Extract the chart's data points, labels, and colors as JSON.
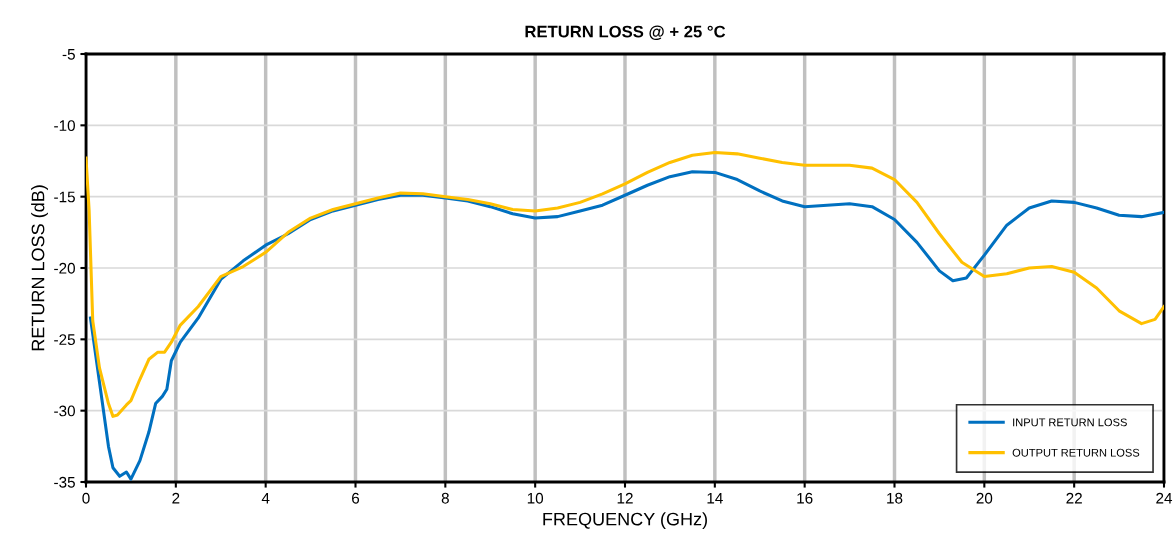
{
  "chart_data": {
    "type": "line",
    "title": "RETURN LOSS @ + 25 °C",
    "xlabel": "FREQUENCY (GHz)",
    "ylabel": "RETURN LOSS (dB)",
    "xlim": [
      0,
      24
    ],
    "xticks": [
      0,
      2,
      4,
      6,
      8,
      10,
      12,
      14,
      16,
      18,
      20,
      22,
      24
    ],
    "ylim": [
      -35,
      -5
    ],
    "yticks": [
      -35,
      -30,
      -25,
      -20,
      -15,
      -10,
      -5
    ],
    "grid": true,
    "legend": "bottom right",
    "marker": "none",
    "line_style": "solid",
    "series": [
      {
        "name": "INPUT RETURN LOSS",
        "color": "#0070c0",
        "x": [
          0.1,
          0.3,
          0.5,
          0.6,
          0.75,
          0.9,
          1.0,
          1.2,
          1.4,
          1.55,
          1.7,
          1.8,
          1.9,
          2.1,
          2.5,
          3.0,
          3.5,
          4.0,
          4.5,
          5.0,
          5.5,
          6.0,
          6.5,
          7,
          7.5,
          8,
          8.5,
          9,
          9.5,
          10,
          10.5,
          11,
          11.5,
          12,
          12.5,
          13,
          13.5,
          14,
          14.5,
          15,
          15.5,
          16,
          16.5,
          17,
          17.5,
          18,
          18.5,
          19,
          19.3,
          19.6,
          20,
          20.5,
          21,
          21.5,
          22,
          22.5,
          23,
          23.5,
          24
        ],
        "values": [
          -23.5,
          -28,
          -32.5,
          -34,
          -34.6,
          -34.3,
          -34.8,
          -33.5,
          -31.5,
          -29.5,
          -29,
          -28.5,
          -26.5,
          -25.2,
          -23.5,
          -20.8,
          -19.5,
          -18.4,
          -17.6,
          -16.6,
          -16,
          -15.6,
          -15.2,
          -14.9,
          -14.9,
          -15.1,
          -15.3,
          -15.7,
          -16.2,
          -16.5,
          -16.4,
          -16,
          -15.6,
          -14.9,
          -14.2,
          -13.6,
          -13.25,
          -13.3,
          -13.8,
          -14.6,
          -15.3,
          -15.7,
          -15.6,
          -15.5,
          -15.7,
          -16.6,
          -18.2,
          -20.2,
          -20.9,
          -20.7,
          -19.1,
          -17,
          -15.8,
          -15.3,
          -15.4,
          -15.8,
          -16.3,
          -16.4,
          -16.1
        ]
      },
      {
        "name": "OUTPUT RETURN LOSS",
        "color": "#ffc000",
        "x": [
          0,
          0.07,
          0.15,
          0.3,
          0.5,
          0.6,
          0.7,
          0.9,
          1.0,
          1.2,
          1.4,
          1.6,
          1.75,
          1.9,
          2.1,
          2.5,
          3.0,
          3.5,
          4.0,
          4.5,
          5.0,
          5.5,
          6,
          6.5,
          7,
          7.5,
          8,
          8.5,
          9,
          9.5,
          10,
          10.5,
          11,
          11.5,
          12,
          12.5,
          13,
          13.5,
          14,
          14.5,
          15,
          15.5,
          16,
          16.5,
          17,
          17.5,
          18,
          18.5,
          19,
          19.5,
          20,
          20.5,
          21,
          21.5,
          22,
          22.5,
          23,
          23.5,
          23.8,
          24
        ],
        "values": [
          -12.3,
          -16,
          -23.7,
          -27,
          -29.5,
          -30.4,
          -30.3,
          -29.6,
          -29.3,
          -27.8,
          -26.4,
          -25.9,
          -25.9,
          -25.2,
          -24,
          -22.7,
          -20.6,
          -19.9,
          -18.9,
          -17.5,
          -16.5,
          -15.9,
          -15.5,
          -15.1,
          -14.75,
          -14.8,
          -15,
          -15.2,
          -15.5,
          -15.9,
          -16.0,
          -15.8,
          -15.4,
          -14.8,
          -14.1,
          -13.3,
          -12.6,
          -12.1,
          -11.9,
          -12,
          -12.3,
          -12.6,
          -12.8,
          -12.8,
          -12.8,
          -13.0,
          -13.8,
          -15.4,
          -17.6,
          -19.6,
          -20.6,
          -20.4,
          -20,
          -19.9,
          -20.3,
          -21.4,
          -23,
          -23.9,
          -23.6,
          -22.7
        ]
      }
    ]
  }
}
